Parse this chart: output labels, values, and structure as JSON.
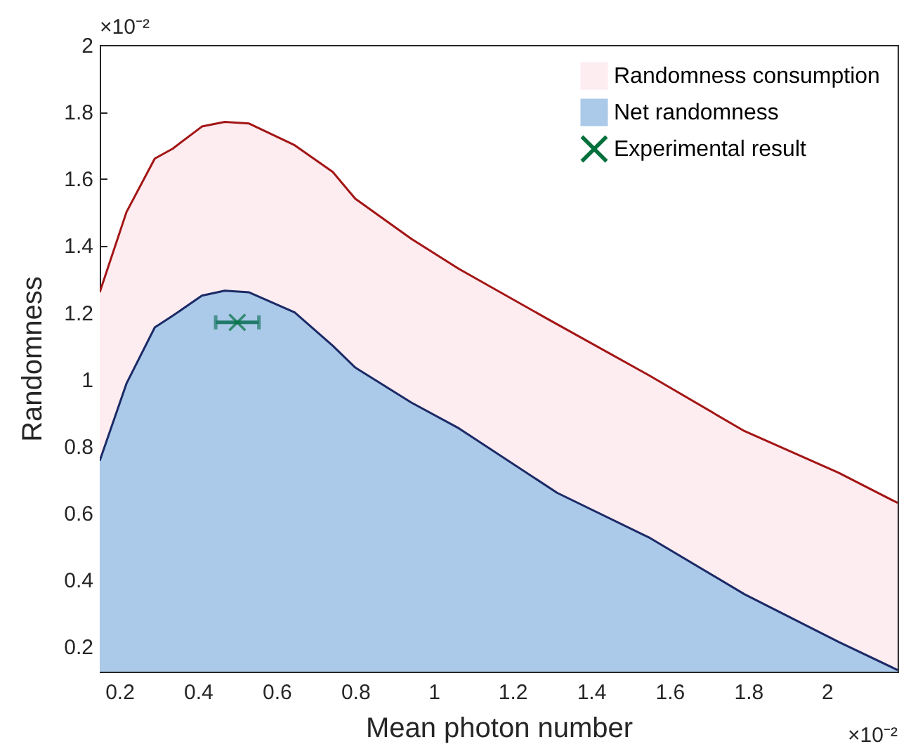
{
  "chart_data": {
    "type": "area",
    "xlabel": "Mean photon number",
    "ylabel": "Randomness",
    "annotations": [
      "×10⁻²",
      "×10⁻²"
    ],
    "xlim": [
      0.15,
      2.18
    ],
    "xticks": [
      0.2,
      0.4,
      0.6,
      0.8,
      1,
      1.2,
      1.4,
      1.6,
      1.8,
      2
    ],
    "ylim": [
      0.125,
      2
    ],
    "yticks": [
      0.2,
      0.4,
      0.6,
      0.8,
      1,
      1.2,
      1.4,
      1.6,
      1.8,
      2
    ],
    "grid": false,
    "legend": "top right",
    "series": [
      {
        "name": "Randomness consumption",
        "type": "area",
        "color": "#fdecf0",
        "x": [
          0.15,
          0.218,
          0.29,
          0.336,
          0.41,
          0.468,
          0.53,
          0.646,
          0.743,
          0.8,
          0.943,
          1.064,
          1.29,
          1.55,
          1.79,
          2.03,
          2.18
        ],
        "values": [
          1.26,
          1.5,
          1.66,
          1.69,
          1.756,
          1.77,
          1.765,
          1.7,
          1.62,
          1.54,
          1.42,
          1.33,
          1.18,
          1.01,
          0.845,
          0.72,
          0.63
        ]
      },
      {
        "name": "Net randomness",
        "type": "area",
        "color": "#abc9e8",
        "x": [
          0.15,
          0.218,
          0.29,
          0.336,
          0.41,
          0.468,
          0.53,
          0.646,
          0.743,
          0.8,
          0.943,
          1.064,
          1.314,
          1.55,
          1.79,
          2.03,
          2.18
        ],
        "values": [
          0.756,
          0.987,
          1.155,
          1.19,
          1.25,
          1.265,
          1.26,
          1.2,
          1.1,
          1.035,
          0.93,
          0.853,
          0.66,
          0.525,
          0.357,
          0.214,
          0.13
        ]
      },
      {
        "name": "Experimental result",
        "type": "scatter",
        "marker": "cross",
        "color": "#00703c",
        "x": [
          0.5
        ],
        "values": [
          1.17
        ],
        "xerrors": [
          0.055
        ]
      }
    ]
  }
}
